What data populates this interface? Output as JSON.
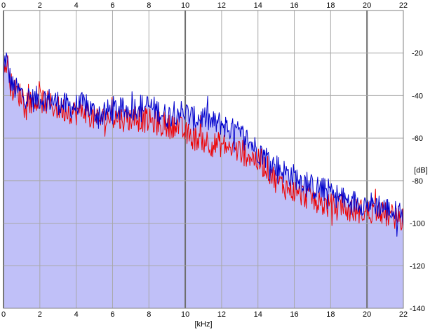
{
  "chart_data": {
    "type": "area",
    "xlabel": "[kHz]",
    "ylabel": "[dB]",
    "xlim": [
      0,
      22
    ],
    "ylim": [
      -140,
      0
    ],
    "x_ticks": [
      0,
      2,
      4,
      6,
      8,
      10,
      12,
      14,
      16,
      18,
      20,
      22
    ],
    "y_ticks": [
      -20,
      -40,
      -60,
      -80,
      -100,
      -120,
      -140
    ],
    "x_tick_labels": [
      "0",
      "2",
      "4",
      "6",
      "8",
      "10",
      "12",
      "14",
      "16",
      "18",
      "20",
      "22"
    ],
    "y_tick_labels": [
      "-20",
      "-40",
      "-60",
      "-80",
      "-100",
      "-120",
      "-140"
    ],
    "grid": true,
    "colors": {
      "background": "#ffffff",
      "fill": "#c0c0f8",
      "grid": "#a8a8a8",
      "grid_major": "#6e6e6e",
      "series_blue": "#0000cc",
      "series_red": "#ee0000"
    },
    "series": [
      {
        "color": "#0000cc",
        "x": [
          0.0,
          0.05,
          0.15,
          0.3,
          0.5,
          0.8,
          1.2,
          1.6,
          2.0,
          2.5,
          3.0,
          3.5,
          4.0,
          4.5,
          5.0,
          5.5,
          6.0,
          6.5,
          7.0,
          7.5,
          8.0,
          8.5,
          9.0,
          9.5,
          10.0,
          10.5,
          11.0,
          11.5,
          12.0,
          12.5,
          13.0,
          13.5,
          14.0,
          14.5,
          15.0,
          15.5,
          16.0,
          16.5,
          17.0,
          17.5,
          18.0,
          18.5,
          19.0,
          19.5,
          20.0,
          20.5,
          21.0,
          21.5,
          22.0
        ],
        "values": [
          -36,
          -24,
          -22,
          -30,
          -36,
          -38,
          -40,
          -42,
          -41,
          -42,
          -43,
          -45,
          -45,
          -44,
          -48,
          -49,
          -46,
          -47,
          -46,
          -45,
          -45,
          -47,
          -50,
          -47,
          -48,
          -51,
          -50,
          -53,
          -53,
          -56,
          -58,
          -61,
          -66,
          -69,
          -73,
          -76,
          -78,
          -80,
          -83,
          -84,
          -85,
          -88,
          -90,
          -90,
          -91,
          -91,
          -93,
          -95,
          -96
        ]
      },
      {
        "color": "#ee0000",
        "x": [
          0.0,
          0.05,
          0.15,
          0.3,
          0.5,
          0.8,
          1.2,
          1.6,
          2.0,
          2.5,
          3.0,
          3.5,
          4.0,
          4.5,
          5.0,
          5.5,
          6.0,
          6.5,
          7.0,
          7.5,
          8.0,
          8.5,
          9.0,
          9.5,
          10.0,
          10.5,
          11.0,
          11.5,
          12.0,
          12.5,
          13.0,
          13.5,
          14.0,
          14.5,
          15.0,
          15.5,
          16.0,
          16.5,
          17.0,
          17.5,
          18.0,
          18.5,
          19.0,
          19.5,
          20.0,
          20.5,
          21.0,
          21.5,
          22.0
        ],
        "values": [
          -38,
          -27,
          -24,
          -32,
          -37,
          -39,
          -41,
          -43,
          -42,
          -44,
          -46,
          -47,
          -48,
          -47,
          -51,
          -51,
          -50,
          -51,
          -51,
          -51,
          -52,
          -53,
          -55,
          -53,
          -58,
          -60,
          -60,
          -63,
          -63,
          -65,
          -66,
          -68,
          -71,
          -74,
          -80,
          -83,
          -85,
          -87,
          -88,
          -91,
          -92,
          -93,
          -94,
          -94,
          -95,
          -94,
          -96,
          -97,
          -98
        ]
      }
    ]
  }
}
